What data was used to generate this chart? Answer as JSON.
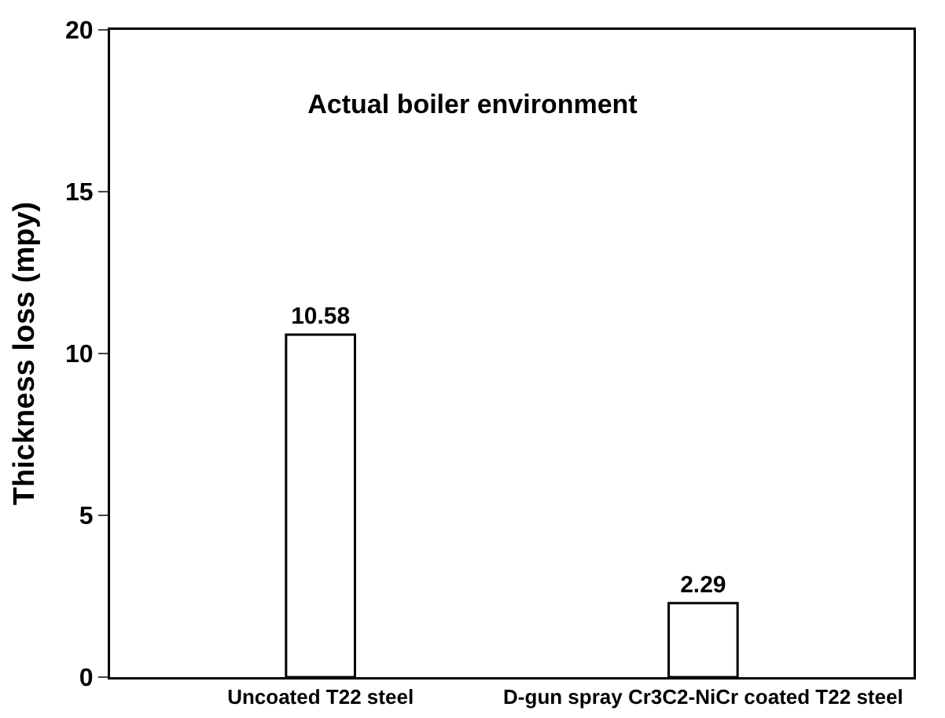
{
  "chart_data": {
    "type": "bar",
    "title": "Actual boiler environment",
    "ylabel": "Thickness loss (mpy)",
    "categories": [
      "Uncoated T22 steel",
      "D-gun spray Cr3C2-NiCr coated T22 steel"
    ],
    "values": [
      10.58,
      2.29
    ],
    "color": "#ffffff",
    "ylim": [
      0,
      20
    ],
    "yticks": [
      0,
      5,
      10,
      15,
      20
    ],
    "grid": false,
    "data_labels": true
  }
}
